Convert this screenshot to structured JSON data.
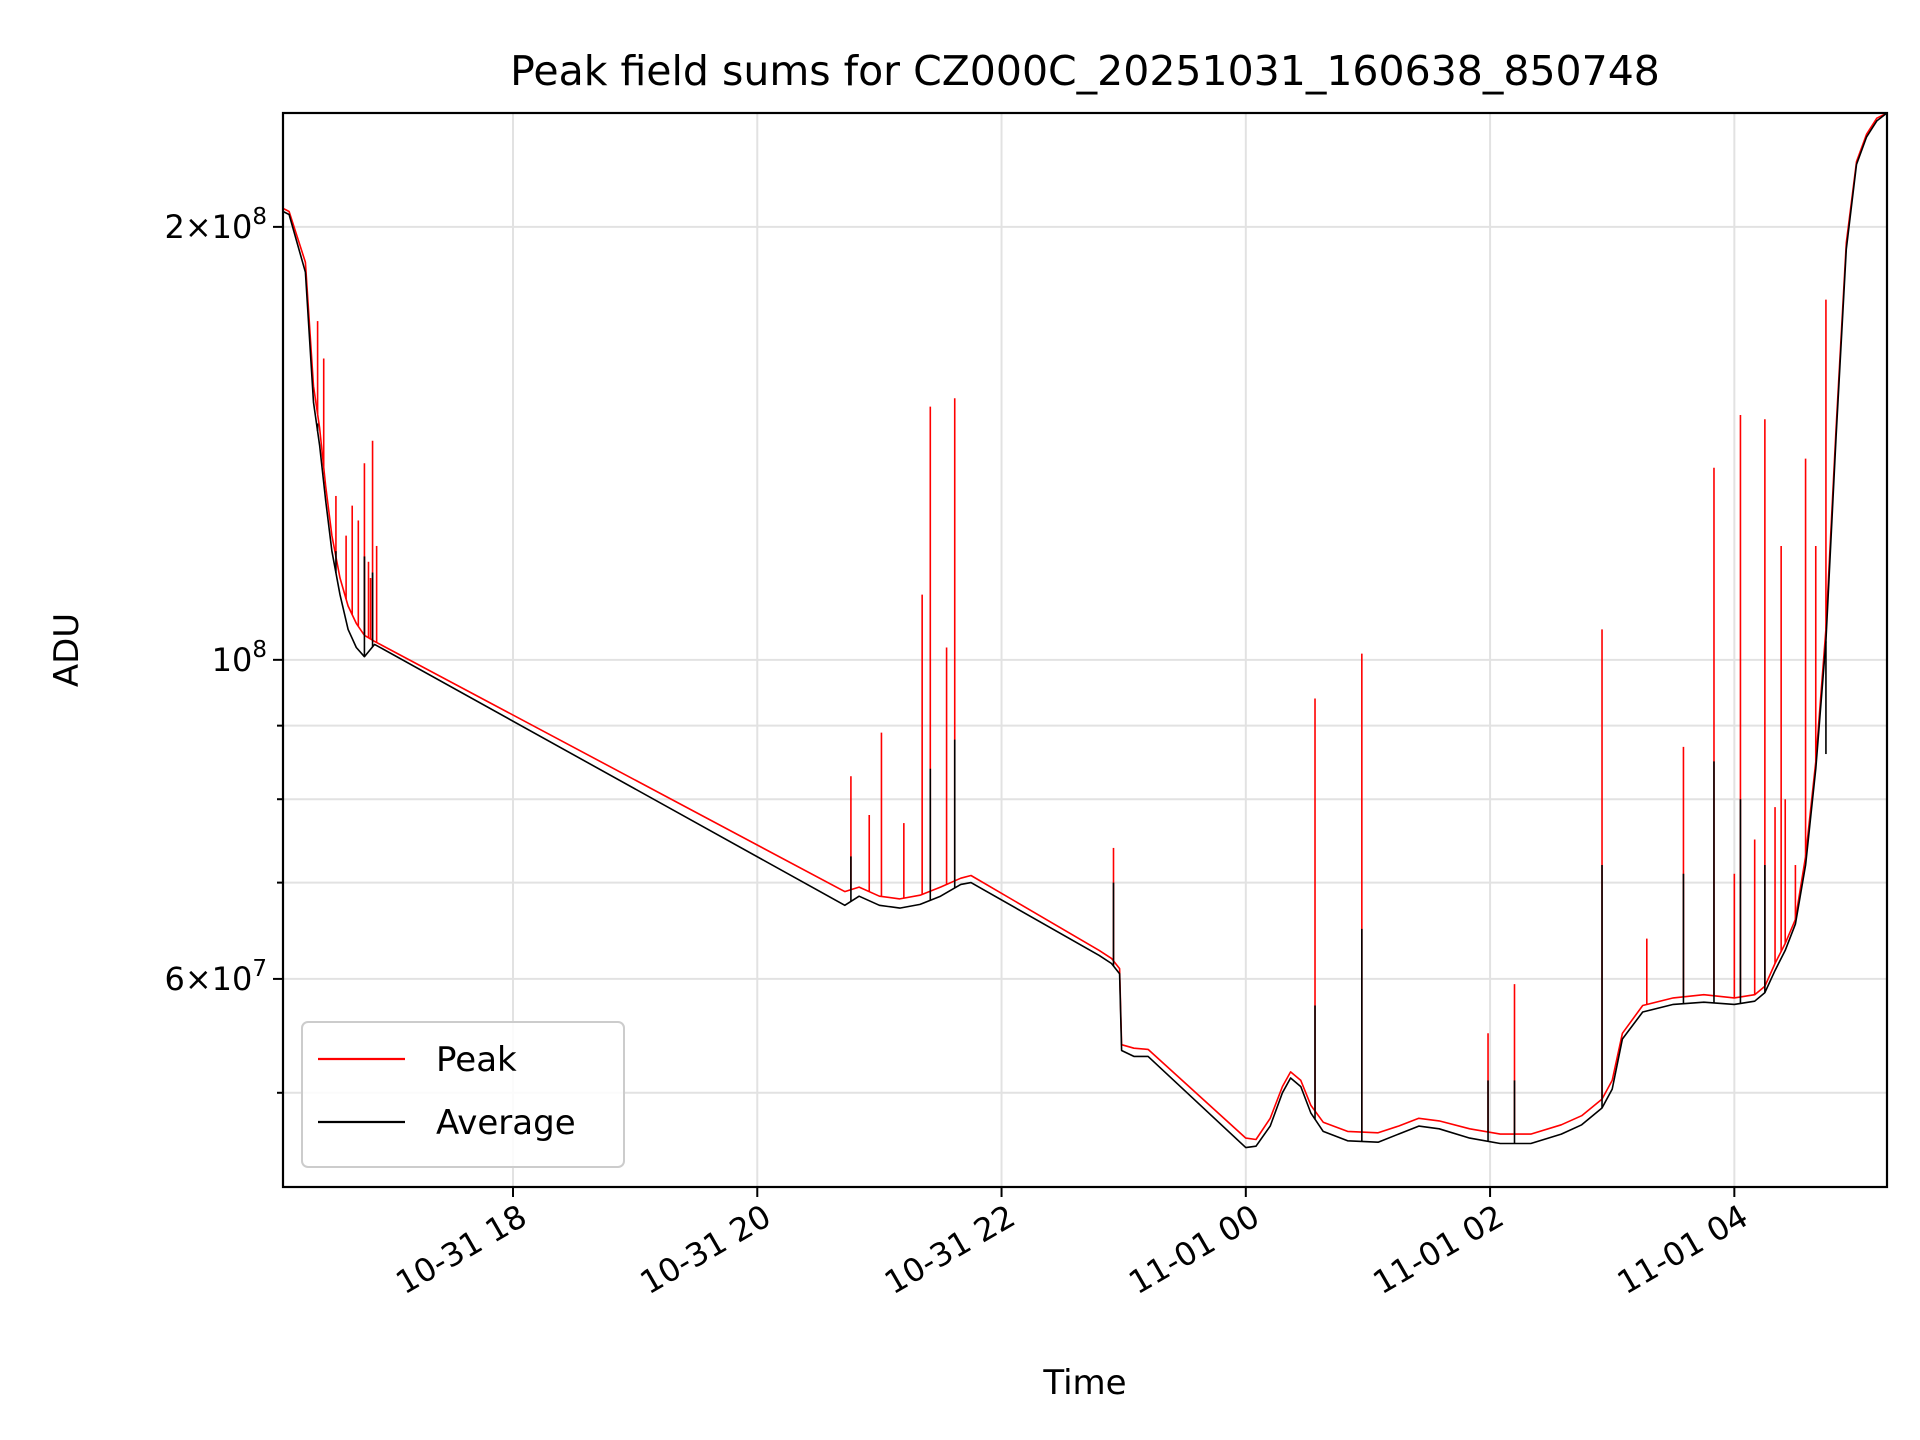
{
  "chart_data": {
    "type": "line",
    "title": "Peak field sums for CZ000C_20251031_160638_850748",
    "xlabel": "Time",
    "ylabel": "ADU",
    "y_scale": "log",
    "ylim": [
      43000000,
      240000000
    ],
    "xlim": [
      "2025-10-31 16:07",
      "2025-11-01 05:15"
    ],
    "grid": true,
    "legend_position": "lower-left",
    "x_ticks": [
      {
        "t": "2025-10-31 18:00",
        "label": "10-31 18"
      },
      {
        "t": "2025-10-31 20:00",
        "label": "10-31 20"
      },
      {
        "t": "2025-10-31 22:00",
        "label": "10-31 22"
      },
      {
        "t": "2025-11-01 00:00",
        "label": "11-01 00"
      },
      {
        "t": "2025-11-01 02:00",
        "label": "11-01 02"
      },
      {
        "t": "2025-11-01 04:00",
        "label": "11-01 04"
      }
    ],
    "y_ticks": [
      {
        "value": 60000000,
        "mantissa": "6",
        "exponent": "7"
      },
      {
        "value": 100000000,
        "mantissa": "",
        "exponent": "8"
      },
      {
        "value": 200000000,
        "mantissa": "2",
        "exponent": "8"
      }
    ],
    "y_minor_ticks": [
      50000000,
      70000000,
      80000000,
      90000000
    ],
    "series": [
      {
        "name": "Peak",
        "color": "#ff0000",
        "points": [
          [
            "2025-10-31 16:07",
            206000000
          ],
          [
            "2025-10-31 16:10",
            205000000
          ],
          [
            "2025-10-31 16:18",
            189000000
          ],
          [
            "2025-10-31 16:22",
            155000000
          ],
          [
            "2025-10-31 16:25",
            145000000
          ],
          [
            "2025-10-31 16:28",
            132000000
          ],
          [
            "2025-10-31 16:31",
            122000000
          ],
          [
            "2025-10-31 16:35",
            114000000
          ],
          [
            "2025-10-31 16:39",
            109000000
          ],
          [
            "2025-10-31 16:43",
            106000000
          ],
          [
            "2025-10-31 16:47",
            104000000
          ],
          [
            "2025-10-31 16:52",
            103000000
          ],
          [
            "2025-10-31 20:43",
            69000000
          ],
          [
            "2025-10-31 20:50",
            69500000
          ],
          [
            "2025-10-31 21:00",
            68500000
          ],
          [
            "2025-10-31 21:10",
            68200000
          ],
          [
            "2025-10-31 21:20",
            68600000
          ],
          [
            "2025-10-31 21:30",
            69500000
          ],
          [
            "2025-10-31 21:40",
            70500000
          ],
          [
            "2025-10-31 21:45",
            70800000
          ],
          [
            "2025-10-31 22:48",
            62800000
          ],
          [
            "2025-10-31 22:54",
            62000000
          ],
          [
            "2025-10-31 22:58",
            61000000
          ],
          [
            "2025-10-31 22:59",
            54000000
          ],
          [
            "2025-10-31 23:05",
            53700000
          ],
          [
            "2025-10-31 23:12",
            53600000
          ],
          [
            "2025-11-01 00:00",
            46500000
          ],
          [
            "2025-11-01 00:05",
            46400000
          ],
          [
            "2025-11-01 00:12",
            48000000
          ],
          [
            "2025-11-01 00:18",
            50500000
          ],
          [
            "2025-11-01 00:22",
            51700000
          ],
          [
            "2025-11-01 00:27",
            51000000
          ],
          [
            "2025-11-01 00:32",
            49000000
          ],
          [
            "2025-11-01 00:38",
            47700000
          ],
          [
            "2025-11-01 00:50",
            47000000
          ],
          [
            "2025-11-01 01:05",
            46900000
          ],
          [
            "2025-11-01 01:15",
            47400000
          ],
          [
            "2025-11-01 01:25",
            48000000
          ],
          [
            "2025-11-01 01:35",
            47800000
          ],
          [
            "2025-11-01 01:50",
            47200000
          ],
          [
            "2025-11-01 02:05",
            46800000
          ],
          [
            "2025-11-01 02:20",
            46800000
          ],
          [
            "2025-11-01 02:35",
            47500000
          ],
          [
            "2025-11-01 02:45",
            48200000
          ],
          [
            "2025-11-01 02:55",
            49500000
          ],
          [
            "2025-11-01 03:00",
            51000000
          ],
          [
            "2025-11-01 03:05",
            55000000
          ],
          [
            "2025-11-01 03:15",
            57500000
          ],
          [
            "2025-11-01 03:30",
            58200000
          ],
          [
            "2025-11-01 03:45",
            58500000
          ],
          [
            "2025-11-01 04:00",
            58200000
          ],
          [
            "2025-11-01 04:10",
            58500000
          ],
          [
            "2025-11-01 04:15",
            59300000
          ],
          [
            "2025-11-01 04:20",
            61500000
          ],
          [
            "2025-11-01 04:25",
            63500000
          ],
          [
            "2025-11-01 04:30",
            66000000
          ],
          [
            "2025-11-01 04:35",
            73000000
          ],
          [
            "2025-11-01 04:40",
            85000000
          ],
          [
            "2025-11-01 04:45",
            105000000
          ],
          [
            "2025-11-01 04:50",
            145000000
          ],
          [
            "2025-11-01 04:55",
            195000000
          ],
          [
            "2025-11-01 05:00",
            222000000
          ],
          [
            "2025-11-01 05:05",
            232000000
          ],
          [
            "2025-11-01 05:10",
            238000000
          ],
          [
            "2025-11-01 05:15",
            240000000
          ]
        ],
        "spikes": [
          [
            "2025-10-31 16:24",
            172000000
          ],
          [
            "2025-10-31 16:27",
            162000000
          ],
          [
            "2025-10-31 16:33",
            130000000
          ],
          [
            "2025-10-31 16:38",
            122000000
          ],
          [
            "2025-10-31 16:41",
            128000000
          ],
          [
            "2025-10-31 16:44",
            125000000
          ],
          [
            "2025-10-31 16:47",
            118000000
          ],
          [
            "2025-10-31 16:49",
            117000000
          ],
          [
            "2025-10-31 16:50",
            114000000
          ],
          [
            "2025-10-31 16:47",
            137000000
          ],
          [
            "2025-10-31 16:51",
            142000000
          ],
          [
            "2025-10-31 16:53",
            120000000
          ],
          [
            "2025-10-31 20:46",
            83000000
          ],
          [
            "2025-10-31 20:55",
            78000000
          ],
          [
            "2025-10-31 21:01",
            89000000
          ],
          [
            "2025-10-31 21:12",
            77000000
          ],
          [
            "2025-10-31 21:21",
            111000000
          ],
          [
            "2025-10-31 21:25",
            150000000
          ],
          [
            "2025-10-31 21:33",
            102000000
          ],
          [
            "2025-10-31 21:37",
            152000000
          ],
          [
            "2025-10-31 22:55",
            74000000
          ],
          [
            "2025-11-01 00:34",
            94000000
          ],
          [
            "2025-11-01 00:57",
            101000000
          ],
          [
            "2025-11-01 01:59",
            55000000
          ],
          [
            "2025-11-01 02:12",
            59500000
          ],
          [
            "2025-11-01 02:55",
            105000000
          ],
          [
            "2025-11-01 03:17",
            64000000
          ],
          [
            "2025-11-01 03:35",
            87000000
          ],
          [
            "2025-11-01 03:50",
            136000000
          ],
          [
            "2025-11-01 04:00",
            71000000
          ],
          [
            "2025-11-01 04:03",
            148000000
          ],
          [
            "2025-11-01 04:10",
            75000000
          ],
          [
            "2025-11-01 04:15",
            147000000
          ],
          [
            "2025-11-01 04:20",
            79000000
          ],
          [
            "2025-11-01 04:23",
            120000000
          ],
          [
            "2025-11-01 04:25",
            80000000
          ],
          [
            "2025-11-01 04:30",
            72000000
          ],
          [
            "2025-11-01 04:35",
            138000000
          ],
          [
            "2025-11-01 04:40",
            120000000
          ],
          [
            "2025-11-01 04:45",
            178000000
          ]
        ]
      },
      {
        "name": "Average",
        "color": "#000000",
        "points": [
          [
            "2025-10-31 16:07",
            205000000
          ],
          [
            "2025-10-31 16:10",
            204000000
          ],
          [
            "2025-10-31 16:18",
            186000000
          ],
          [
            "2025-10-31 16:22",
            151000000
          ],
          [
            "2025-10-31 16:25",
            141000000
          ],
          [
            "2025-10-31 16:28",
            129000000
          ],
          [
            "2025-10-31 16:31",
            119000000
          ],
          [
            "2025-10-31 16:35",
            111000000
          ],
          [
            "2025-10-31 16:39",
            105000000
          ],
          [
            "2025-10-31 16:43",
            102000000
          ],
          [
            "2025-10-31 16:47",
            100500000
          ],
          [
            "2025-10-31 16:52",
            102500000
          ],
          [
            "2025-10-31 20:43",
            67500000
          ],
          [
            "2025-10-31 20:50",
            68500000
          ],
          [
            "2025-10-31 21:00",
            67500000
          ],
          [
            "2025-10-31 21:10",
            67200000
          ],
          [
            "2025-10-31 21:20",
            67600000
          ],
          [
            "2025-10-31 21:30",
            68500000
          ],
          [
            "2025-10-31 21:40",
            69800000
          ],
          [
            "2025-10-31 21:45",
            70000000
          ],
          [
            "2025-10-31 22:48",
            62300000
          ],
          [
            "2025-10-31 22:54",
            61500000
          ],
          [
            "2025-10-31 22:58",
            60500000
          ],
          [
            "2025-10-31 22:59",
            53500000
          ],
          [
            "2025-10-31 23:05",
            53000000
          ],
          [
            "2025-10-31 23:12",
            53000000
          ],
          [
            "2025-11-01 00:00",
            45800000
          ],
          [
            "2025-11-01 00:05",
            45900000
          ],
          [
            "2025-11-01 00:12",
            47400000
          ],
          [
            "2025-11-01 00:18",
            50000000
          ],
          [
            "2025-11-01 00:22",
            51200000
          ],
          [
            "2025-11-01 00:27",
            50500000
          ],
          [
            "2025-11-01 00:32",
            48400000
          ],
          [
            "2025-11-01 00:38",
            47000000
          ],
          [
            "2025-11-01 00:50",
            46300000
          ],
          [
            "2025-11-01 01:05",
            46200000
          ],
          [
            "2025-11-01 01:15",
            46800000
          ],
          [
            "2025-11-01 01:25",
            47400000
          ],
          [
            "2025-11-01 01:35",
            47200000
          ],
          [
            "2025-11-01 01:50",
            46500000
          ],
          [
            "2025-11-01 02:05",
            46100000
          ],
          [
            "2025-11-01 02:20",
            46100000
          ],
          [
            "2025-11-01 02:35",
            46800000
          ],
          [
            "2025-11-01 02:45",
            47500000
          ],
          [
            "2025-11-01 02:55",
            48800000
          ],
          [
            "2025-11-01 03:00",
            50300000
          ],
          [
            "2025-11-01 03:05",
            54500000
          ],
          [
            "2025-11-01 03:15",
            56900000
          ],
          [
            "2025-11-01 03:30",
            57600000
          ],
          [
            "2025-11-01 03:45",
            57800000
          ],
          [
            "2025-11-01 04:00",
            57600000
          ],
          [
            "2025-11-01 04:10",
            57900000
          ],
          [
            "2025-11-01 04:15",
            58700000
          ],
          [
            "2025-11-01 04:20",
            60800000
          ],
          [
            "2025-11-01 04:25",
            62800000
          ],
          [
            "2025-11-01 04:30",
            65500000
          ],
          [
            "2025-11-01 04:35",
            72000000
          ],
          [
            "2025-11-01 04:40",
            84000000
          ],
          [
            "2025-11-01 04:45",
            103000000
          ],
          [
            "2025-11-01 04:50",
            143000000
          ],
          [
            "2025-11-01 04:55",
            193000000
          ],
          [
            "2025-11-01 05:00",
            221000000
          ],
          [
            "2025-11-01 05:05",
            231000000
          ],
          [
            "2025-11-01 05:10",
            237000000
          ],
          [
            "2025-11-01 05:15",
            240000000
          ]
        ],
        "spikes": [
          [
            "2025-10-31 16:24",
            146000000
          ],
          [
            "2025-10-31 16:33",
            119000000
          ],
          [
            "2025-10-31 16:47",
            118000000
          ],
          [
            "2025-10-31 16:51",
            115000000
          ],
          [
            "2025-10-31 20:46",
            73000000
          ],
          [
            "2025-10-31 21:25",
            84000000
          ],
          [
            "2025-10-31 21:37",
            88000000
          ],
          [
            "2025-10-31 22:55",
            70000000
          ],
          [
            "2025-11-01 00:34",
            57500000
          ],
          [
            "2025-11-01 00:57",
            65000000
          ],
          [
            "2025-11-01 01:59",
            51000000
          ],
          [
            "2025-11-01 02:12",
            51000000
          ],
          [
            "2025-11-01 02:55",
            72000000
          ],
          [
            "2025-11-01 03:35",
            71000000
          ],
          [
            "2025-11-01 03:50",
            85000000
          ],
          [
            "2025-11-01 04:03",
            80000000
          ],
          [
            "2025-11-01 04:15",
            72000000
          ],
          [
            "2025-11-01 04:45",
            86000000
          ]
        ]
      }
    ]
  }
}
